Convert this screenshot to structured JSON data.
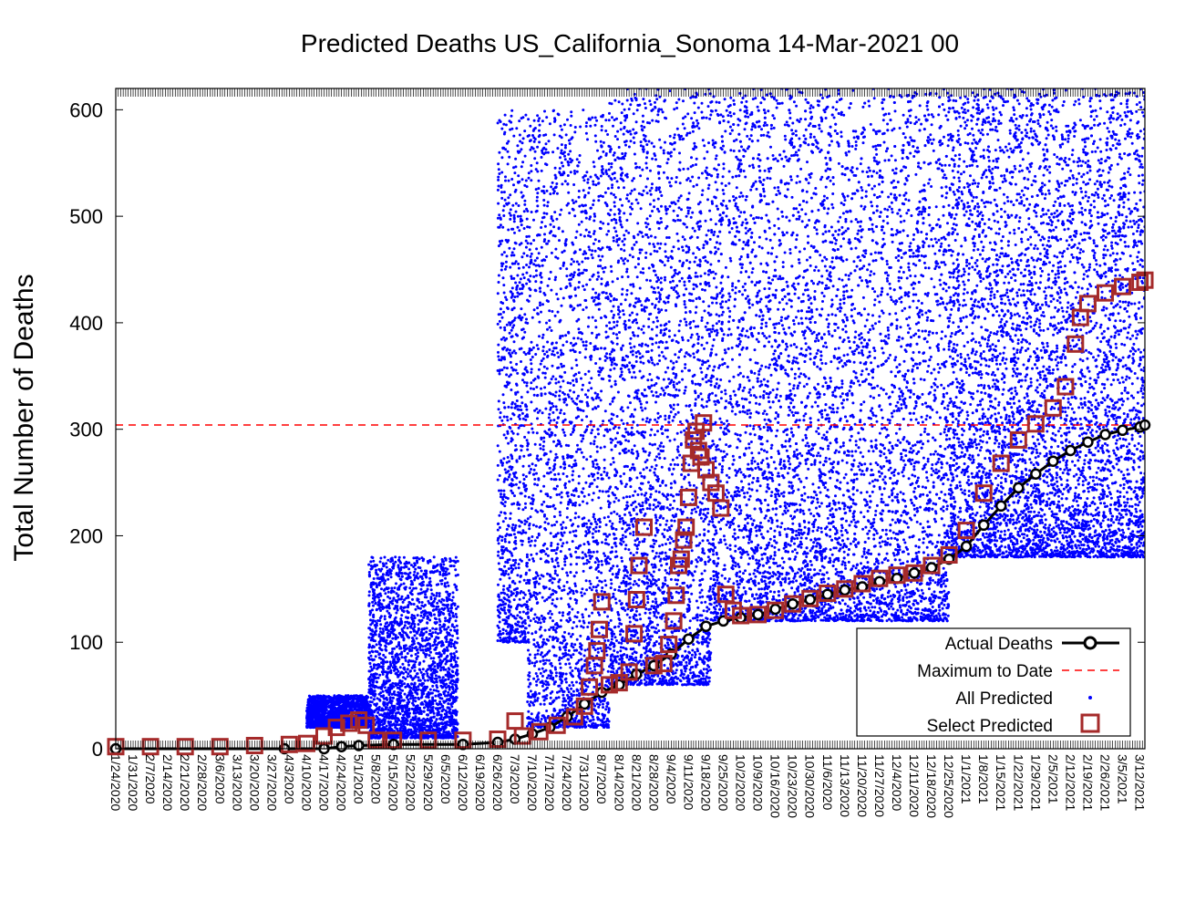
{
  "chart_data": {
    "type": "scatter",
    "title": "Predicted Deaths US_California_Sonoma 14-Mar-2021 00",
    "xlabel": "",
    "ylabel": "Total Number of Deaths",
    "ylim": [
      0,
      620
    ],
    "yticks": [
      "0",
      "100",
      "200",
      "300",
      "400",
      "500",
      "600"
    ],
    "xlim": [
      "1/24/2020",
      "3/14/2021"
    ],
    "xticks": [
      "1/24/2020",
      "1/31/2020",
      "2/7/2020",
      "2/14/2020",
      "2/21/2020",
      "2/28/2020",
      "3/6/2020",
      "3/13/2020",
      "3/20/2020",
      "3/27/2020",
      "4/3/2020",
      "4/10/2020",
      "4/17/2020",
      "4/24/2020",
      "5/1/2020",
      "5/8/2020",
      "5/15/2020",
      "5/22/2020",
      "5/29/2020",
      "6/5/2020",
      "6/12/2020",
      "6/19/2020",
      "6/26/2020",
      "7/3/2020",
      "7/10/2020",
      "7/17/2020",
      "7/24/2020",
      "7/31/2020",
      "8/7/2020",
      "8/14/2020",
      "8/21/2020",
      "8/28/2020",
      "9/4/2020",
      "9/11/2020",
      "9/18/2020",
      "9/25/2020",
      "10/2/2020",
      "10/9/2020",
      "10/16/2020",
      "10/23/2020",
      "10/30/2020",
      "11/6/2020",
      "11/13/2020",
      "11/20/2020",
      "11/27/2020",
      "12/4/2020",
      "12/11/2020",
      "12/18/2020",
      "12/25/2020",
      "1/1/2021",
      "1/8/2021",
      "1/15/2021",
      "1/22/2021",
      "1/29/2021",
      "2/5/2021",
      "2/12/2021",
      "2/19/2021",
      "2/26/2021",
      "3/5/2021",
      "3/12/2021"
    ],
    "grid": false,
    "legend_position": "bottom-right",
    "maximum_to_date": 304,
    "series": [
      {
        "name": "Actual Deaths",
        "marker": "circle-line",
        "color": "#000000",
        "points": [
          [
            "1/24/2020",
            0
          ],
          [
            "4/1/2020",
            0
          ],
          [
            "4/17/2020",
            0
          ],
          [
            "4/24/2020",
            2
          ],
          [
            "5/1/2020",
            3
          ],
          [
            "5/15/2020",
            4
          ],
          [
            "6/12/2020",
            4
          ],
          [
            "6/26/2020",
            6
          ],
          [
            "7/3/2020",
            9
          ],
          [
            "7/10/2020",
            14
          ],
          [
            "7/17/2020",
            20
          ],
          [
            "7/24/2020",
            30
          ],
          [
            "7/31/2020",
            42
          ],
          [
            "8/7/2020",
            53
          ],
          [
            "8/14/2020",
            60
          ],
          [
            "8/21/2020",
            70
          ],
          [
            "8/28/2020",
            78
          ],
          [
            "9/4/2020",
            89
          ],
          [
            "9/11/2020",
            103
          ],
          [
            "9/18/2020",
            115
          ],
          [
            "9/25/2020",
            120
          ],
          [
            "10/2/2020",
            123
          ],
          [
            "10/9/2020",
            126
          ],
          [
            "10/16/2020",
            131
          ],
          [
            "10/23/2020",
            136
          ],
          [
            "10/30/2020",
            140
          ],
          [
            "11/6/2020",
            145
          ],
          [
            "11/13/2020",
            149
          ],
          [
            "11/20/2020",
            152
          ],
          [
            "11/27/2020",
            157
          ],
          [
            "12/4/2020",
            160
          ],
          [
            "12/11/2020",
            165
          ],
          [
            "12/18/2020",
            170
          ],
          [
            "12/25/2020",
            178
          ],
          [
            "1/1/2021",
            190
          ],
          [
            "1/8/2021",
            210
          ],
          [
            "1/15/2021",
            228
          ],
          [
            "1/22/2021",
            245
          ],
          [
            "1/29/2021",
            258
          ],
          [
            "2/5/2021",
            270
          ],
          [
            "2/12/2021",
            280
          ],
          [
            "2/19/2021",
            288
          ],
          [
            "2/26/2021",
            295
          ],
          [
            "3/5/2021",
            299
          ],
          [
            "3/12/2021",
            302
          ],
          [
            "3/14/2021",
            304
          ]
        ]
      },
      {
        "name": "Select Predicted",
        "marker": "square",
        "color": "#a52a2a",
        "points": [
          [
            "1/24/2020",
            2
          ],
          [
            "2/7/2020",
            2
          ],
          [
            "2/21/2020",
            2
          ],
          [
            "3/6/2020",
            2
          ],
          [
            "3/20/2020",
            3
          ],
          [
            "4/3/2020",
            4
          ],
          [
            "4/10/2020",
            5
          ],
          [
            "4/17/2020",
            12
          ],
          [
            "4/22/2020",
            20
          ],
          [
            "4/27/2020",
            24
          ],
          [
            "5/1/2020",
            27
          ],
          [
            "5/4/2020",
            22
          ],
          [
            "5/8/2020",
            8
          ],
          [
            "5/15/2020",
            8
          ],
          [
            "5/29/2020",
            8
          ],
          [
            "6/12/2020",
            8
          ],
          [
            "6/26/2020",
            9
          ],
          [
            "7/3/2020",
            26
          ],
          [
            "7/6/2020",
            12
          ],
          [
            "7/13/2020",
            16
          ],
          [
            "7/20/2020",
            22
          ],
          [
            "7/27/2020",
            30
          ],
          [
            "7/31/2020",
            40
          ],
          [
            "8/2/2020",
            58
          ],
          [
            "8/4/2020",
            78
          ],
          [
            "8/5/2020",
            92
          ],
          [
            "8/6/2020",
            112
          ],
          [
            "8/7/2020",
            138
          ],
          [
            "8/10/2020",
            60
          ],
          [
            "8/14/2020",
            62
          ],
          [
            "8/18/2020",
            72
          ],
          [
            "8/20/2020",
            108
          ],
          [
            "8/21/2020",
            140
          ],
          [
            "8/22/2020",
            172
          ],
          [
            "8/24/2020",
            208
          ],
          [
            "8/28/2020",
            78
          ],
          [
            "9/1/2020",
            80
          ],
          [
            "9/3/2020",
            98
          ],
          [
            "9/5/2020",
            120
          ],
          [
            "9/6/2020",
            144
          ],
          [
            "9/7/2020",
            172
          ],
          [
            "9/8/2020",
            178
          ],
          [
            "9/9/2020",
            196
          ],
          [
            "9/10/2020",
            208
          ],
          [
            "9/11/2020",
            236
          ],
          [
            "9/12/2020",
            268
          ],
          [
            "9/13/2020",
            290
          ],
          [
            "9/14/2020",
            298
          ],
          [
            "9/15/2020",
            280
          ],
          [
            "9/16/2020",
            274
          ],
          [
            "9/17/2020",
            306
          ],
          [
            "9/18/2020",
            262
          ],
          [
            "9/20/2020",
            250
          ],
          [
            "9/22/2020",
            240
          ],
          [
            "9/24/2020",
            226
          ],
          [
            "9/26/2020",
            145
          ],
          [
            "9/29/2020",
            130
          ],
          [
            "10/2/2020",
            125
          ],
          [
            "10/9/2020",
            126
          ],
          [
            "10/16/2020",
            130
          ],
          [
            "10/23/2020",
            136
          ],
          [
            "10/30/2020",
            141
          ],
          [
            "11/6/2020",
            146
          ],
          [
            "11/13/2020",
            150
          ],
          [
            "11/20/2020",
            155
          ],
          [
            "11/27/2020",
            160
          ],
          [
            "12/4/2020",
            163
          ],
          [
            "12/11/2020",
            165
          ],
          [
            "12/18/2020",
            172
          ],
          [
            "12/25/2020",
            182
          ],
          [
            "1/1/2021",
            205
          ],
          [
            "1/8/2021",
            240
          ],
          [
            "1/15/2021",
            268
          ],
          [
            "1/22/2021",
            290
          ],
          [
            "1/29/2021",
            305
          ],
          [
            "2/5/2021",
            320
          ],
          [
            "2/10/2021",
            340
          ],
          [
            "2/14/2021",
            380
          ],
          [
            "2/16/2021",
            405
          ],
          [
            "2/19/2021",
            418
          ],
          [
            "2/26/2021",
            428
          ],
          [
            "3/5/2021",
            434
          ],
          [
            "3/12/2021",
            438
          ],
          [
            "3/14/2021",
            440
          ]
        ]
      },
      {
        "name": "All Predicted",
        "marker": "dot",
        "color": "#0000ff",
        "clusters": [
          {
            "x": [
              "4/10/2020",
              "5/5/2020"
            ],
            "y": [
              20,
              50
            ]
          },
          {
            "x": [
              "5/5/2020",
              "6/10/2020"
            ],
            "y": [
              10,
              180
            ]
          },
          {
            "x": [
              "6/26/2020",
              "7/8/2020"
            ],
            "y": [
              100,
              600
            ]
          },
          {
            "x": [
              "7/8/2020",
              "8/10/2020"
            ],
            "y": [
              20,
              600
            ]
          },
          {
            "x": [
              "8/10/2020",
              "9/20/2020"
            ],
            "y": [
              60,
              620
            ]
          },
          {
            "x": [
              "9/20/2020",
              "12/25/2020"
            ],
            "y": [
              120,
              620
            ]
          },
          {
            "x": [
              "12/25/2020",
              "3/14/2021"
            ],
            "y": [
              180,
              620
            ]
          }
        ]
      }
    ]
  },
  "legend": {
    "actual_label": "Actual Deaths",
    "max_label": "Maximum to Date",
    "all_label": "All Predicted",
    "select_label": "Select Predicted"
  },
  "colors": {
    "actual": "#000000",
    "maximum": "#ff0000",
    "all_predicted": "#0000ff",
    "select_predicted": "#a52a2a"
  }
}
